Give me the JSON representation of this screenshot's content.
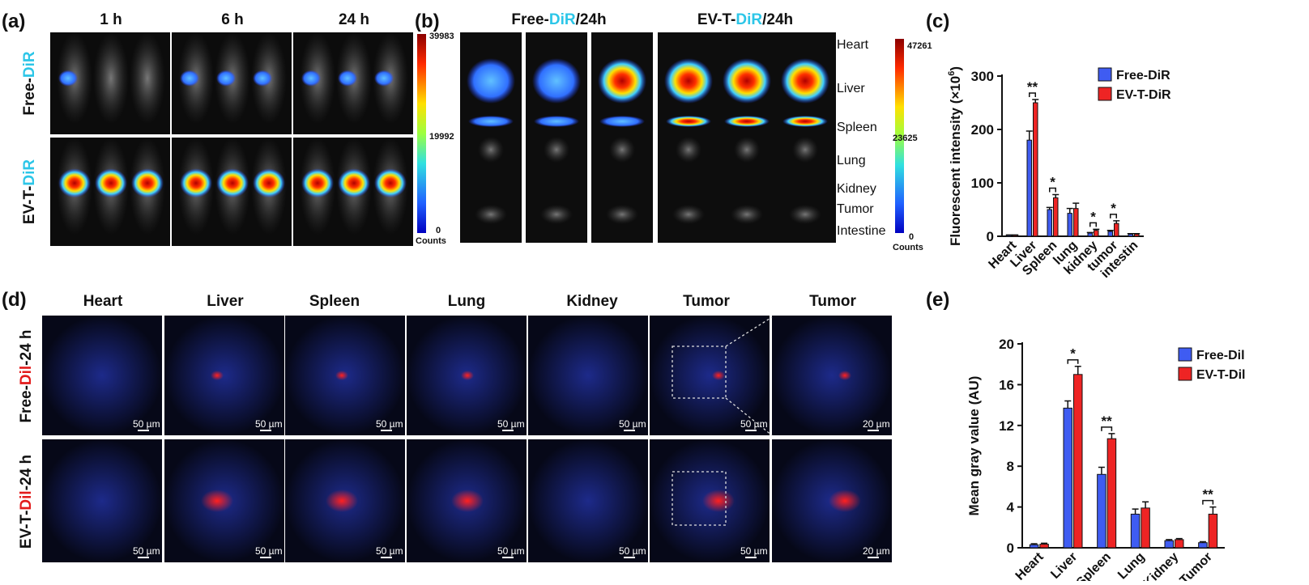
{
  "panel_a": {
    "label": "(a)",
    "columns": [
      "1 h",
      "6 h",
      "24 h"
    ],
    "rows": [
      {
        "prefix": "Free-",
        "highlight": "DiR"
      },
      {
        "prefix": "EV-T-",
        "highlight": "DiR"
      }
    ],
    "colorbar": {
      "max": 39983,
      "mid": 19992,
      "min": 0,
      "unit": "Counts"
    }
  },
  "panel_b": {
    "label": "(b)",
    "groups": [
      {
        "prefix": "Free-",
        "highlight": "DiR",
        "suffix": "/24h"
      },
      {
        "prefix": "EV-T-",
        "highlight": "DiR",
        "suffix": "/24h"
      }
    ],
    "organs": [
      "Heart",
      "Liver",
      "Spleen",
      "Lung",
      "Kidney",
      "Tumor",
      "Intestine"
    ],
    "colorbar": {
      "max": 47261,
      "mid": 23625,
      "min": 0,
      "unit": "Counts"
    }
  },
  "panel_d": {
    "label": "(d)",
    "columns": [
      "Heart",
      "Liver",
      "Spleen",
      "Lung",
      "Kidney",
      "Tumor",
      "Tumor"
    ],
    "rows": [
      {
        "prefix": "Free-",
        "highlight": "Dil",
        "suffix": "-24 h"
      },
      {
        "prefix": "EV-T-",
        "highlight": "Dil",
        "suffix": "-24 h"
      }
    ],
    "scale_bars": [
      "50 µm",
      "50 µm",
      "50 µm",
      "50 µm",
      "50 µm",
      "50 µm",
      "20 µm"
    ]
  },
  "chart_data": [
    {
      "type": "bar",
      "panel_label": "(c)",
      "ylabel": "Fluorescent intensity (×10",
      "ylabel_sup": "6",
      "ylabel_tail": ")",
      "categories": [
        "Heart",
        "Liver",
        "Spleen",
        "lung",
        "kidney",
        "tumor",
        "intestin"
      ],
      "series": [
        {
          "name": "Free-DiR",
          "color": "#3f5cf2",
          "values": [
            2,
            180,
            50,
            43,
            6,
            9,
            4
          ],
          "errors": [
            0.5,
            17,
            4,
            9,
            1,
            2,
            1
          ]
        },
        {
          "name": "EV-T-DiR",
          "color": "#ee2424",
          "values": [
            2,
            250,
            72,
            52,
            11,
            24,
            4
          ],
          "errors": [
            0.5,
            6,
            6,
            10,
            2,
            5,
            1
          ]
        }
      ],
      "significance": [
        null,
        "**",
        "*",
        null,
        "*",
        "*",
        null
      ],
      "ylim": [
        0,
        300
      ],
      "yticks": [
        0,
        100,
        200,
        300
      ]
    },
    {
      "type": "bar",
      "panel_label": "(e)",
      "ylabel": "Mean gray value  (AU)",
      "categories": [
        "Heart",
        "Liver",
        "Spleen",
        "Lung",
        "Kidney",
        "Tumor"
      ],
      "series": [
        {
          "name": "Free-Dil",
          "color": "#3f5cf2",
          "values": [
            0.3,
            13.7,
            7.2,
            3.3,
            0.7,
            0.5
          ],
          "errors": [
            0.1,
            0.7,
            0.7,
            0.5,
            0.1,
            0.1
          ]
        },
        {
          "name": "EV-T-Dil",
          "color": "#ee2424",
          "values": [
            0.35,
            17,
            10.7,
            3.9,
            0.8,
            3.3
          ],
          "errors": [
            0.1,
            0.8,
            0.5,
            0.6,
            0.1,
            0.7
          ]
        }
      ],
      "significance": [
        null,
        "*",
        "**",
        null,
        null,
        "**"
      ],
      "ylim": [
        0,
        20
      ],
      "yticks": [
        0,
        4,
        8,
        12,
        16,
        20
      ]
    }
  ]
}
